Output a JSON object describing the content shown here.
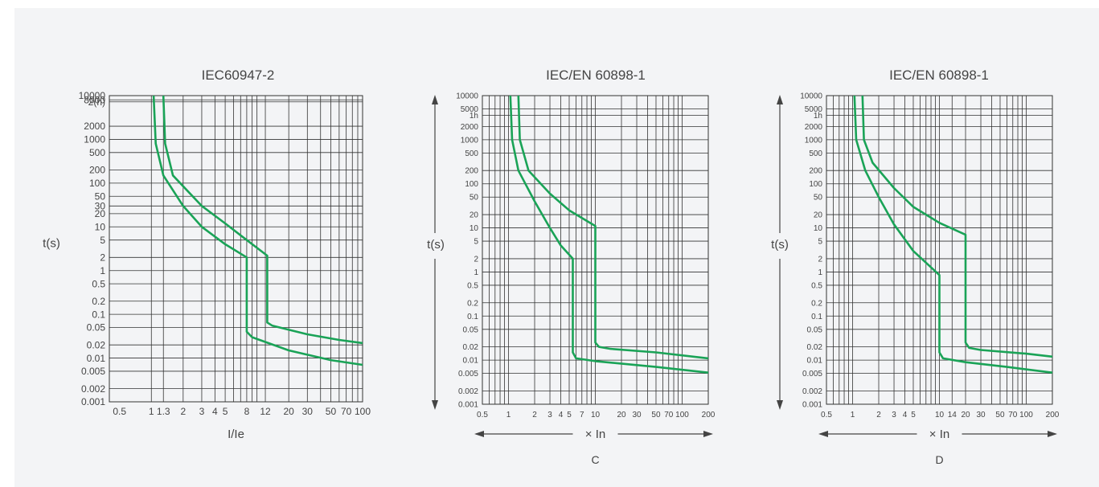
{
  "colors": {
    "panel_bg": "#f3f4f6",
    "grid": "#333333",
    "curve": "#1aa357",
    "text": "#444444"
  },
  "chart_data": [
    {
      "type": "line",
      "title": "IEC60947-2",
      "ylabel": "t(s)",
      "xlabel": "I/Ie",
      "sublabel": "",
      "xscale": "log",
      "yscale": "log",
      "xlim": [
        0.4,
        100
      ],
      "ylim": [
        0.001,
        10000
      ],
      "grid": true,
      "x_ticks": [
        {
          "v": 0.5,
          "label": "0.5"
        },
        {
          "v": 1,
          "label": "1"
        },
        {
          "v": 1.3,
          "label": "1.3"
        },
        {
          "v": 2,
          "label": "2"
        },
        {
          "v": 3,
          "label": "3"
        },
        {
          "v": 4,
          "label": "4"
        },
        {
          "v": 5,
          "label": "5"
        },
        {
          "v": 8,
          "label": "8"
        },
        {
          "v": 12,
          "label": "12"
        },
        {
          "v": 20,
          "label": "20"
        },
        {
          "v": 30,
          "label": "30"
        },
        {
          "v": 50,
          "label": "50"
        },
        {
          "v": 70,
          "label": "70"
        },
        {
          "v": 100,
          "label": "100"
        }
      ],
      "x_grid": [
        1,
        1.3,
        2,
        3,
        4,
        5,
        6,
        7,
        8,
        9,
        10,
        12,
        20,
        30,
        40,
        50,
        60,
        70,
        80,
        90,
        100
      ],
      "y_ticks": [
        {
          "v": 10000,
          "label": "10000"
        },
        {
          "v": 8000,
          "label": "8000"
        },
        {
          "v": 7200,
          "label": "2(h)"
        },
        {
          "v": 2000,
          "label": "2000"
        },
        {
          "v": 1000,
          "label": "1000"
        },
        {
          "v": 500,
          "label": "500"
        },
        {
          "v": 200,
          "label": "200"
        },
        {
          "v": 100,
          "label": "100"
        },
        {
          "v": 50,
          "label": "50"
        },
        {
          "v": 30,
          "label": "30"
        },
        {
          "v": 20,
          "label": "20"
        },
        {
          "v": 10,
          "label": "10"
        },
        {
          "v": 5,
          "label": "5"
        },
        {
          "v": 2,
          "label": "2"
        },
        {
          "v": 1,
          "label": "1"
        },
        {
          "v": 0.5,
          "label": "0.5"
        },
        {
          "v": 0.2,
          "label": "0.2"
        },
        {
          "v": 0.1,
          "label": "0.1"
        },
        {
          "v": 0.05,
          "label": "0.05"
        },
        {
          "v": 0.02,
          "label": "0.02"
        },
        {
          "v": 0.01,
          "label": "0.01"
        },
        {
          "v": 0.005,
          "label": "0.005"
        },
        {
          "v": 0.002,
          "label": "0.002"
        },
        {
          "v": 0.001,
          "label": "0.001"
        }
      ],
      "series": [
        {
          "points": [
            [
              1.05,
              10000
            ],
            [
              1.1,
              800
            ],
            [
              1.3,
              150
            ],
            [
              2,
              30
            ],
            [
              3,
              10
            ],
            [
              5,
              4
            ],
            [
              8,
              2
            ],
            [
              8,
              0.04
            ],
            [
              9,
              0.03
            ],
            [
              20,
              0.015
            ],
            [
              50,
              0.009
            ],
            [
              100,
              0.007
            ]
          ]
        },
        {
          "points": [
            [
              1.3,
              10000
            ],
            [
              1.35,
              800
            ],
            [
              1.6,
              150
            ],
            [
              3,
              30
            ],
            [
              5,
              12
            ],
            [
              8,
              5
            ],
            [
              12.5,
              2.2
            ],
            [
              12.5,
              0.065
            ],
            [
              14,
              0.055
            ],
            [
              30,
              0.035
            ],
            [
              60,
              0.026
            ],
            [
              100,
              0.022
            ]
          ]
        }
      ]
    },
    {
      "type": "line",
      "title": "IEC/EN 60898-1",
      "ylabel": "t(s)",
      "xlabel": "× In",
      "sublabel": "C",
      "xscale": "log",
      "yscale": "log",
      "xlim": [
        0.5,
        200
      ],
      "ylim": [
        0.001,
        10000
      ],
      "grid": true,
      "x_ticks": [
        {
          "v": 0.5,
          "label": "0.5"
        },
        {
          "v": 1,
          "label": "1"
        },
        {
          "v": 2,
          "label": "2"
        },
        {
          "v": 3,
          "label": "3"
        },
        {
          "v": 4,
          "label": "4"
        },
        {
          "v": 5,
          "label": "5"
        },
        {
          "v": 7,
          "label": "7"
        },
        {
          "v": 10,
          "label": "10"
        },
        {
          "v": 20,
          "label": "20"
        },
        {
          "v": 30,
          "label": "30"
        },
        {
          "v": 50,
          "label": "50"
        },
        {
          "v": 70,
          "label": "70"
        },
        {
          "v": 100,
          "label": "100"
        },
        {
          "v": 200,
          "label": "200"
        }
      ],
      "x_grid": [
        0.6,
        0.7,
        0.8,
        0.9,
        1,
        2,
        3,
        4,
        5,
        6,
        7,
        8,
        9,
        10,
        20,
        30,
        40,
        50,
        60,
        70,
        80,
        90,
        100,
        200
      ],
      "y_ticks": [
        {
          "v": 10000,
          "label": "10000"
        },
        {
          "v": 5000,
          "label": "5000"
        },
        {
          "v": 3600,
          "label": "1h"
        },
        {
          "v": 2000,
          "label": "2000"
        },
        {
          "v": 1000,
          "label": "1000"
        },
        {
          "v": 500,
          "label": "500"
        },
        {
          "v": 200,
          "label": "200"
        },
        {
          "v": 100,
          "label": "100"
        },
        {
          "v": 50,
          "label": "50"
        },
        {
          "v": 20,
          "label": "20"
        },
        {
          "v": 10,
          "label": "10"
        },
        {
          "v": 5,
          "label": "5"
        },
        {
          "v": 2,
          "label": "2"
        },
        {
          "v": 1,
          "label": "1"
        },
        {
          "v": 0.5,
          "label": "0.5"
        },
        {
          "v": 0.2,
          "label": "0.2"
        },
        {
          "v": 0.1,
          "label": "0.1"
        },
        {
          "v": 0.05,
          "label": "0.05"
        },
        {
          "v": 0.02,
          "label": "0.02"
        },
        {
          "v": 0.01,
          "label": "0.01"
        },
        {
          "v": 0.005,
          "label": "0.005"
        },
        {
          "v": 0.002,
          "label": "0.002"
        },
        {
          "v": 0.001,
          "label": "0.001"
        }
      ],
      "series": [
        {
          "points": [
            [
              1.05,
              10000
            ],
            [
              1.1,
              1000
            ],
            [
              1.3,
              200
            ],
            [
              2,
              40
            ],
            [
              3,
              10
            ],
            [
              4,
              4
            ],
            [
              5.5,
              2
            ],
            [
              5.5,
              0.015
            ],
            [
              6,
              0.011
            ],
            [
              10,
              0.0095
            ],
            [
              50,
              0.007
            ],
            [
              200,
              0.0052
            ]
          ]
        },
        {
          "points": [
            [
              1.3,
              10000
            ],
            [
              1.35,
              1000
            ],
            [
              1.7,
              200
            ],
            [
              3,
              60
            ],
            [
              5,
              25
            ],
            [
              10,
              11
            ],
            [
              10,
              0.025
            ],
            [
              11,
              0.02
            ],
            [
              15,
              0.018
            ],
            [
              50,
              0.015
            ],
            [
              200,
              0.011
            ]
          ]
        }
      ]
    },
    {
      "type": "line",
      "title": "IEC/EN 60898-1",
      "ylabel": "t(s)",
      "xlabel": "× In",
      "sublabel": "D",
      "xscale": "log",
      "yscale": "log",
      "xlim": [
        0.5,
        200
      ],
      "ylim": [
        0.001,
        10000
      ],
      "grid": true,
      "x_ticks": [
        {
          "v": 0.5,
          "label": "0.5"
        },
        {
          "v": 1,
          "label": "1"
        },
        {
          "v": 2,
          "label": "2"
        },
        {
          "v": 3,
          "label": "3"
        },
        {
          "v": 4,
          "label": "4"
        },
        {
          "v": 5,
          "label": "5"
        },
        {
          "v": 10,
          "label": "10"
        },
        {
          "v": 14,
          "label": "14"
        },
        {
          "v": 20,
          "label": "20"
        },
        {
          "v": 30,
          "label": "30"
        },
        {
          "v": 50,
          "label": "50"
        },
        {
          "v": 70,
          "label": "70"
        },
        {
          "v": 100,
          "label": "100"
        },
        {
          "v": 200,
          "label": "200"
        }
      ],
      "x_grid": [
        0.6,
        0.7,
        0.8,
        0.9,
        1,
        2,
        3,
        4,
        5,
        6,
        7,
        8,
        9,
        10,
        14,
        20,
        30,
        40,
        50,
        60,
        70,
        80,
        90,
        100,
        200
      ],
      "y_ticks": [
        {
          "v": 10000,
          "label": "10000"
        },
        {
          "v": 5000,
          "label": "5000"
        },
        {
          "v": 3600,
          "label": "1h"
        },
        {
          "v": 2000,
          "label": "2000"
        },
        {
          "v": 1000,
          "label": "1000"
        },
        {
          "v": 500,
          "label": "500"
        },
        {
          "v": 200,
          "label": "200"
        },
        {
          "v": 100,
          "label": "100"
        },
        {
          "v": 50,
          "label": "50"
        },
        {
          "v": 20,
          "label": "20"
        },
        {
          "v": 10,
          "label": "10"
        },
        {
          "v": 5,
          "label": "5"
        },
        {
          "v": 2,
          "label": "2"
        },
        {
          "v": 1,
          "label": "1"
        },
        {
          "v": 0.5,
          "label": "0.5"
        },
        {
          "v": 0.2,
          "label": "0.2"
        },
        {
          "v": 0.1,
          "label": "0.1"
        },
        {
          "v": 0.05,
          "label": "0.05"
        },
        {
          "v": 0.02,
          "label": "0.02"
        },
        {
          "v": 0.01,
          "label": "0.01"
        },
        {
          "v": 0.005,
          "label": "0.005"
        },
        {
          "v": 0.002,
          "label": "0.002"
        },
        {
          "v": 0.001,
          "label": "0.001"
        }
      ],
      "series": [
        {
          "points": [
            [
              1.05,
              10000
            ],
            [
              1.1,
              1000
            ],
            [
              1.4,
              200
            ],
            [
              2,
              50
            ],
            [
              3,
              12
            ],
            [
              5,
              3
            ],
            [
              10,
              0.85
            ],
            [
              10,
              0.015
            ],
            [
              11,
              0.011
            ],
            [
              20,
              0.009
            ],
            [
              60,
              0.007
            ],
            [
              200,
              0.0052
            ]
          ]
        },
        {
          "points": [
            [
              1.3,
              10000
            ],
            [
              1.35,
              1000
            ],
            [
              1.7,
              300
            ],
            [
              3,
              80
            ],
            [
              5,
              30
            ],
            [
              10,
              13
            ],
            [
              20,
              7
            ],
            [
              20,
              0.025
            ],
            [
              22,
              0.019
            ],
            [
              30,
              0.017
            ],
            [
              100,
              0.014
            ],
            [
              200,
              0.012
            ]
          ]
        }
      ]
    }
  ]
}
